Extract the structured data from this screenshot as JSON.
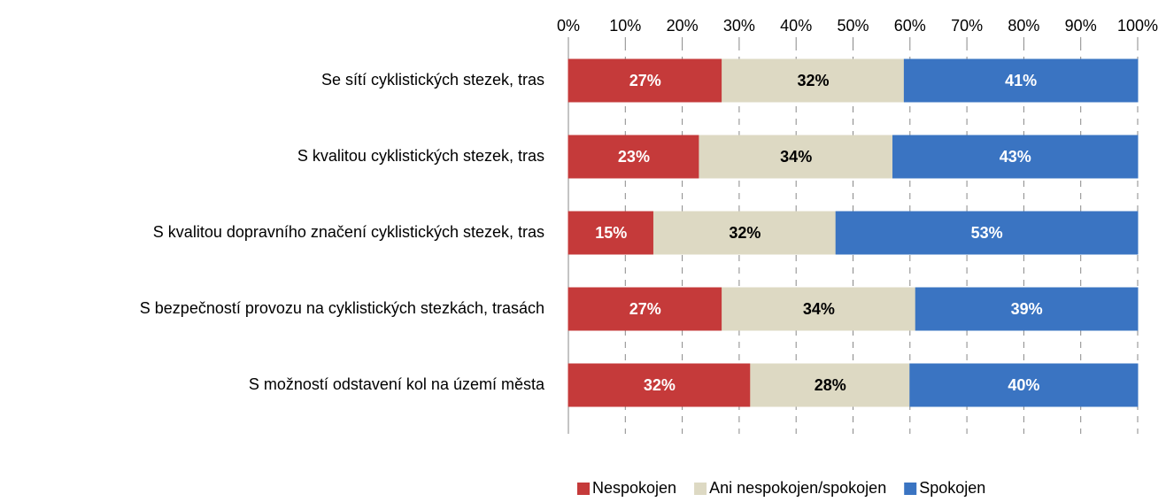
{
  "chart_data": {
    "type": "stacked-bar-horizontal",
    "categories": [
      "Se sítí cyklistických stezek, tras",
      "S kvalitou cyklistických stezek, tras",
      "S kvalitou dopravního značení cyklistických stezek, tras",
      "S bezpečností provozu na cyklistických stezkách, trasách",
      "S možností odstavení kol na území města"
    ],
    "series": [
      {
        "name": "Nespokojen",
        "color": "#c53a3a",
        "label_color": "#ffffff",
        "values": [
          27,
          23,
          15,
          27,
          32
        ],
        "value_labels": [
          "27%",
          "23%",
          "15%",
          "27%",
          "32%"
        ]
      },
      {
        "name": "Ani nespokojen/spokojen",
        "color": "#ddd9c3",
        "label_color": "#000000",
        "values": [
          32,
          34,
          32,
          34,
          28
        ],
        "value_labels": [
          "32%",
          "34%",
          "32%",
          "34%",
          "28%"
        ]
      },
      {
        "name": "Spokojen",
        "color": "#3a74c2",
        "label_color": "#ffffff",
        "values": [
          41,
          43,
          53,
          39,
          40
        ],
        "value_labels": [
          "41%",
          "43%",
          "53%",
          "39%",
          "40%"
        ]
      }
    ],
    "xlim": [
      0,
      100
    ],
    "xticks": [
      {
        "value": 0,
        "label": "0%"
      },
      {
        "value": 10,
        "label": "10%"
      },
      {
        "value": 20,
        "label": "20%"
      },
      {
        "value": 30,
        "label": "30%"
      },
      {
        "value": 40,
        "label": "40%"
      },
      {
        "value": 50,
        "label": "50%"
      },
      {
        "value": 60,
        "label": "60%"
      },
      {
        "value": 70,
        "label": "70%"
      },
      {
        "value": 80,
        "label": "80%"
      },
      {
        "value": 90,
        "label": "90%"
      },
      {
        "value": 100,
        "label": "100%"
      }
    ],
    "grid": true,
    "legend": "bottom"
  }
}
